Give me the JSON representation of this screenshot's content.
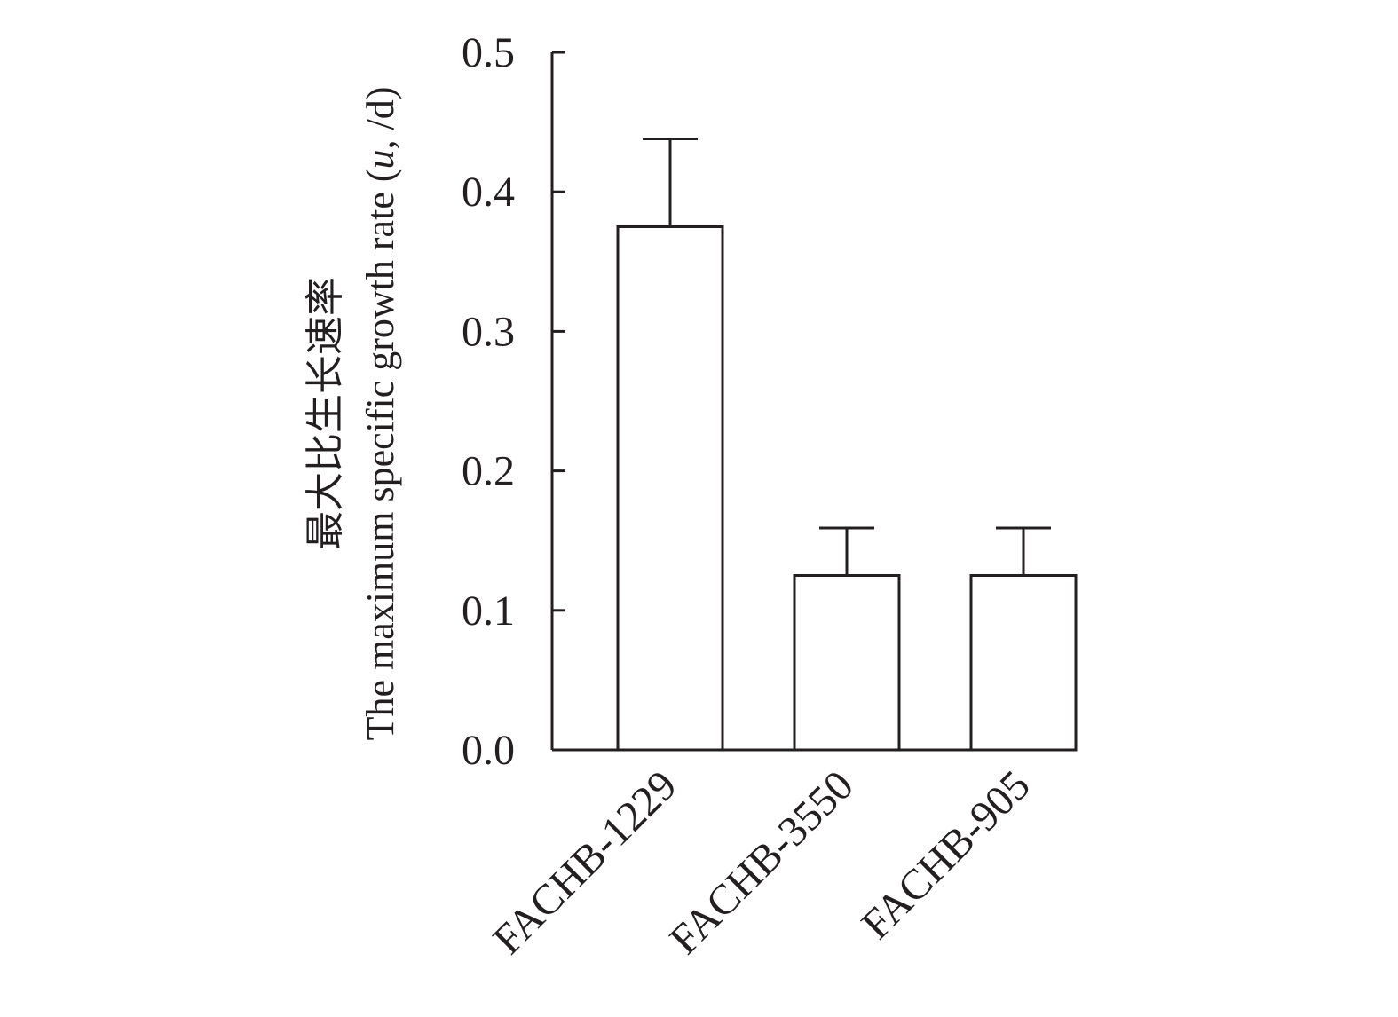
{
  "chart_data": {
    "type": "bar",
    "categories": [
      "FACHB-1229",
      "FACHB-3550",
      "FACHB-905"
    ],
    "values": [
      0.375,
      0.125,
      0.125
    ],
    "errors": [
      0.063,
      0.034,
      0.034
    ],
    "title": "",
    "xlabel": "",
    "ylabel_cn": "最大比生长速率",
    "ylabel_en": "The maximum specific growth rate (",
    "ylabel_var": "u",
    "ylabel_unit": ", /d)",
    "ylim": [
      0,
      0.5
    ],
    "yticks": [
      "0.0",
      "0.1",
      "0.2",
      "0.3",
      "0.4",
      "0.5"
    ],
    "grid": false,
    "legend": "none",
    "bar_fill": "#ffffff",
    "line_color": "#231f20"
  }
}
